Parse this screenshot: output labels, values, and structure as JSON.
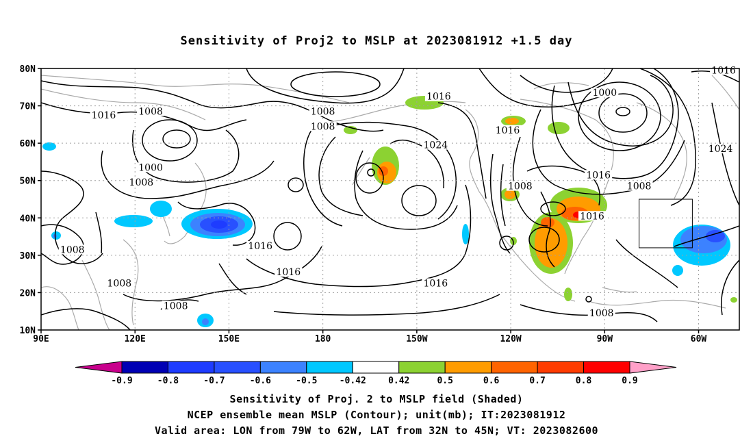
{
  "title": "Sensitivity of Proj2 to MSLP at 2023081912 +1.5 day",
  "map": {
    "lon_labels": [
      "90E",
      "120E",
      "150E",
      "180",
      "150W",
      "120W",
      "90W",
      "60W"
    ],
    "lat_labels": [
      "80N",
      "70N",
      "60N",
      "50N",
      "40N",
      "30N",
      "20N",
      "10N"
    ],
    "contour_labels": [
      {
        "text": "1016",
        "lon": 110,
        "lat": 67
      },
      {
        "text": "1008",
        "lon": 125,
        "lat": 68
      },
      {
        "text": "1008",
        "lon": 180,
        "lat": 68
      },
      {
        "text": "1008",
        "lon": 180,
        "lat": 64
      },
      {
        "text": "1016",
        "lon": -143,
        "lat": 72
      },
      {
        "text": "1000",
        "lon": -90,
        "lat": 73
      },
      {
        "text": "1016",
        "lon": -121,
        "lat": 63
      },
      {
        "text": "1024",
        "lon": -144,
        "lat": 59
      },
      {
        "text": "1000",
        "lon": 125,
        "lat": 53
      },
      {
        "text": "1008",
        "lon": 122,
        "lat": 49
      },
      {
        "text": "1016",
        "lon": -92,
        "lat": 51
      },
      {
        "text": "1008",
        "lon": -117,
        "lat": 48
      },
      {
        "text": "1008",
        "lon": -79,
        "lat": 48
      },
      {
        "text": "1016",
        "lon": -94,
        "lat": 40
      },
      {
        "text": "1016",
        "lon": 160,
        "lat": 32
      },
      {
        "text": "1008",
        "lon": 100,
        "lat": 31
      },
      {
        "text": "1016",
        "lon": 169,
        "lat": 25
      },
      {
        "text": "1016",
        "lon": -144,
        "lat": 22
      },
      {
        "text": "1008",
        "lon": 115,
        "lat": 22
      },
      {
        "text": "1008",
        "lon": 133,
        "lat": 16
      },
      {
        "text": "1008",
        "lon": -91,
        "lat": 14
      },
      {
        "text": "1024",
        "lon": -53,
        "lat": 58
      },
      {
        "text": "1016",
        "lon": -52,
        "lat": 79
      }
    ],
    "valid_box": {
      "lon_west": -79,
      "lon_east": -62,
      "lat_south": 32,
      "lat_north": 45
    }
  },
  "colorbar": {
    "tick_labels": [
      "-0.9",
      "-0.8",
      "-0.7",
      "-0.6",
      "-0.5",
      "-0.42",
      "0.42",
      "0.5",
      "0.6",
      "0.7",
      "0.8",
      "0.9"
    ],
    "colors": [
      "#0000b4",
      "#1e3cff",
      "#2850ff",
      "#3c82ff",
      "#00c8ff",
      "#ffffff",
      "#8cd232",
      "#ff9c00",
      "#ff6400",
      "#ff3c00",
      "#ff0000"
    ],
    "below_color": "#c8008c",
    "above_color": "#ffa0c8"
  },
  "captions": [
    "Sensitivity of Proj. 2 to MSLP field (Shaded)",
    "NCEP ensemble mean MSLP (Contour); unit(mb); IT:2023081912",
    "Valid area: LON from 79W to 62W, LAT from 32N to 45N; VT: 2023082600"
  ]
}
